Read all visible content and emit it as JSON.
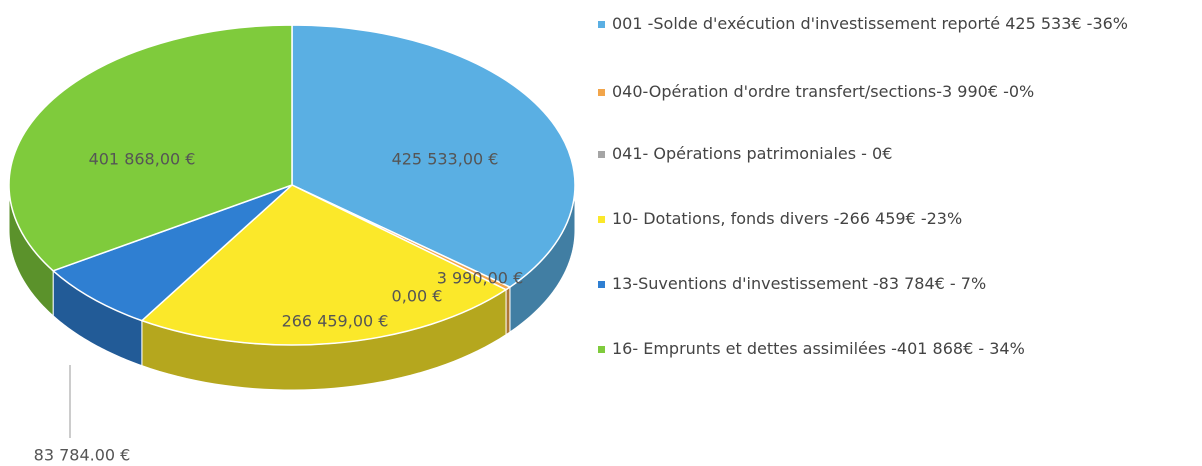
{
  "chart_data": {
    "type": "pie",
    "categories": [
      "001 -Solde d'exécution d'investissement reporté  425 533€ -36%",
      "040-Opération d'ordre transfert/sections-3 990€ -0%",
      "041- Opérations patrimoniales - 0€",
      "10- Dotations, fonds divers -266 459€ -23%",
      "13-Suventions d'investissement -83 784€ - 7%",
      "16- Emprunts et dettes assimilées -401 868€ - 34%"
    ],
    "values": [
      425533,
      3990,
      0,
      266459,
      83784,
      401868
    ],
    "value_labels": [
      "425 533,00 €",
      "3 990,00 €",
      "0,00 €",
      "266 459,00 €",
      "83 784.00 €",
      "401 868,00 €"
    ],
    "colors": [
      "#5aafe3",
      "#f2a54a",
      "#a5a5a5",
      "#fbe82a",
      "#2f7fd2",
      "#7fcb3c"
    ]
  }
}
